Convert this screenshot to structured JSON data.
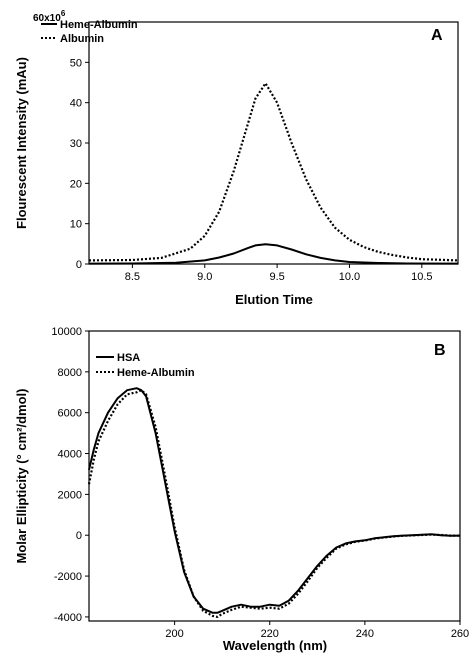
{
  "chart_data": [
    {
      "type": "line",
      "panel_label": "A",
      "xlabel": "Elution Time",
      "ylabel": "Flourescent Intensity (mAu)",
      "y_multiplier_label": "60x10",
      "y_multiplier_exponent": "6",
      "xlim": [
        8.2,
        10.75
      ],
      "ylim": [
        0,
        60
      ],
      "x_ticks": [
        8.5,
        9.0,
        9.5,
        10.0,
        10.5
      ],
      "x_tick_labels": [
        "8.5",
        "9.0",
        "9.5",
        "10.0",
        "10.5"
      ],
      "y_ticks": [
        0,
        10,
        20,
        30,
        40,
        50
      ],
      "y_tick_labels": [
        "0",
        "10",
        "20",
        "30",
        "40",
        "50"
      ],
      "grid": false,
      "legend_position": "top-left",
      "series": [
        {
          "name": "Heme-Albumin",
          "style": "solid",
          "x": [
            8.2,
            8.5,
            8.8,
            9.0,
            9.1,
            9.2,
            9.3,
            9.35,
            9.42,
            9.5,
            9.6,
            9.7,
            9.8,
            9.9,
            10.0,
            10.2,
            10.4,
            10.75
          ],
          "y": [
            0.1,
            0.12,
            0.3,
            0.9,
            1.6,
            2.6,
            4.0,
            4.6,
            4.9,
            4.6,
            3.6,
            2.4,
            1.5,
            0.9,
            0.5,
            0.25,
            0.12,
            0.1
          ]
        },
        {
          "name": "Albumin",
          "style": "dotted",
          "x": [
            8.2,
            8.5,
            8.7,
            8.9,
            9.0,
            9.1,
            9.2,
            9.3,
            9.35,
            9.42,
            9.5,
            9.6,
            9.7,
            9.8,
            9.9,
            10.0,
            10.1,
            10.2,
            10.3,
            10.4,
            10.5,
            10.75
          ],
          "y": [
            0.9,
            1.0,
            1.5,
            3.8,
            7.0,
            13.0,
            23.0,
            35.0,
            41.0,
            44.8,
            40.0,
            30.0,
            21.0,
            14.0,
            9.0,
            6.0,
            4.2,
            3.0,
            2.2,
            1.6,
            1.2,
            0.9
          ]
        }
      ]
    },
    {
      "type": "line",
      "panel_label": "B",
      "xlabel": "Wavelength (nm)",
      "ylabel": "Molar Ellipticity (° cm²/dmol)",
      "xlim": [
        182,
        260
      ],
      "ylim": [
        -4200,
        10000
      ],
      "x_ticks": [
        200,
        220,
        240,
        260
      ],
      "x_tick_labels": [
        "200",
        "220",
        "240",
        "260"
      ],
      "y_ticks": [
        -4000,
        -2000,
        0,
        2000,
        4000,
        6000,
        8000,
        10000
      ],
      "y_tick_labels": [
        "-4000",
        "-2000",
        "0",
        "2000",
        "4000",
        "6000",
        "8000",
        "10000"
      ],
      "grid": false,
      "legend_position": "top-left",
      "series": [
        {
          "name": "HSA",
          "style": "solid",
          "x": [
            182,
            183,
            184,
            186,
            188,
            190,
            192,
            193,
            194,
            196,
            198,
            200,
            202,
            204,
            206,
            208,
            209,
            210,
            212,
            214,
            216,
            218,
            220,
            222,
            224,
            226,
            228,
            230,
            232,
            234,
            236,
            238,
            240,
            242,
            244,
            246,
            248,
            250,
            252,
            254,
            256,
            258,
            260
          ],
          "y": [
            3200,
            4200,
            5000,
            6000,
            6700,
            7100,
            7200,
            7100,
            6800,
            5000,
            2600,
            200,
            -1800,
            -3000,
            -3600,
            -3800,
            -3800,
            -3700,
            -3500,
            -3400,
            -3500,
            -3500,
            -3400,
            -3450,
            -3200,
            -2700,
            -2100,
            -1500,
            -1000,
            -600,
            -400,
            -300,
            -250,
            -150,
            -100,
            -50,
            -20,
            0,
            20,
            50,
            0,
            -30,
            -20
          ]
        },
        {
          "name": "Heme-Albumin",
          "style": "dotted",
          "x": [
            182,
            183,
            184,
            186,
            188,
            190,
            192,
            193,
            194,
            196,
            198,
            200,
            202,
            204,
            206,
            208,
            209,
            210,
            212,
            214,
            216,
            218,
            220,
            222,
            224,
            226,
            228,
            230,
            232,
            234,
            236,
            238,
            240,
            242,
            244,
            246,
            248,
            250,
            252,
            254,
            256,
            258,
            260
          ],
          "y": [
            2500,
            3700,
            4600,
            5600,
            6400,
            6900,
            7000,
            7100,
            6900,
            5300,
            2900,
            400,
            -1700,
            -3000,
            -3700,
            -3950,
            -4000,
            -3850,
            -3650,
            -3500,
            -3550,
            -3600,
            -3550,
            -3600,
            -3350,
            -2850,
            -2250,
            -1600,
            -1100,
            -650,
            -450,
            -320,
            -260,
            -170,
            -110,
            -60,
            -30,
            -10,
            10,
            30,
            10,
            -20,
            -20
          ]
        }
      ]
    }
  ]
}
